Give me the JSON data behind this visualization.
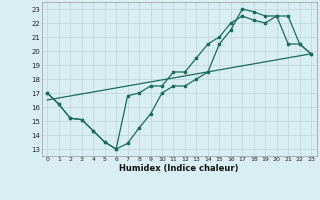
{
  "xlabel": "Humidex (Indice chaleur)",
  "bg_color": "#d9eef3",
  "grid_color": "#c0d8e0",
  "line_color": "#1a6b5a",
  "xlim": [
    -0.5,
    23.5
  ],
  "ylim": [
    12.5,
    23.5
  ],
  "xticks": [
    0,
    1,
    2,
    3,
    4,
    5,
    6,
    7,
    8,
    9,
    10,
    11,
    12,
    13,
    14,
    15,
    16,
    17,
    18,
    19,
    20,
    21,
    22,
    23
  ],
  "yticks": [
    13,
    14,
    15,
    16,
    17,
    18,
    19,
    20,
    21,
    22,
    23
  ],
  "line1_x": [
    0,
    1,
    2,
    3,
    4,
    5,
    6,
    7,
    8,
    9,
    10,
    11,
    12,
    13,
    14,
    15,
    16,
    17,
    18,
    19,
    20,
    21,
    22,
    23
  ],
  "line1_y": [
    17,
    16.2,
    15.2,
    15.1,
    14.3,
    13.5,
    13.0,
    16.8,
    17.0,
    17.5,
    17.5,
    18.5,
    18.5,
    19.5,
    20.5,
    21.0,
    22.0,
    22.5,
    22.2,
    22.0,
    22.5,
    20.5,
    20.5,
    19.8
  ],
  "line2_x": [
    0,
    1,
    2,
    3,
    4,
    5,
    6,
    7,
    8,
    9,
    10,
    11,
    12,
    13,
    14,
    15,
    16,
    17,
    18,
    19,
    20,
    21,
    22,
    23
  ],
  "line2_y": [
    17.0,
    16.2,
    15.2,
    15.1,
    14.3,
    13.5,
    13.0,
    13.4,
    14.5,
    15.5,
    17.0,
    17.5,
    17.5,
    18.0,
    18.5,
    20.5,
    21.5,
    23.0,
    22.8,
    22.5,
    22.5,
    22.5,
    20.5,
    19.8
  ],
  "line3_x": [
    0,
    23
  ],
  "line3_y": [
    16.5,
    19.8
  ]
}
